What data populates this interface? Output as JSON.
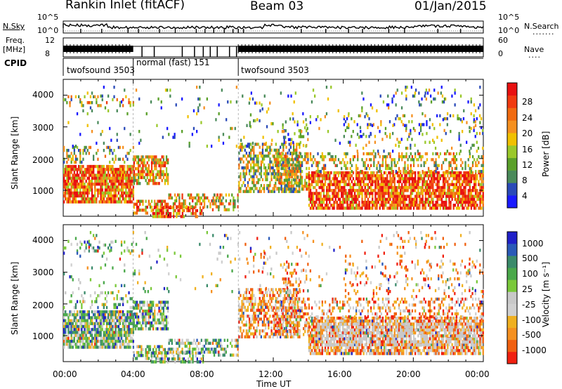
{
  "header": {
    "station": "Rankin Inlet (fitACF)",
    "beam": "Beam 03",
    "date": "01/Jan/2015"
  },
  "noise_panel": {
    "left_label": "N.Sky",
    "right_label": "N.Search",
    "right_dots": ".......",
    "left_ticks": [
      "10^5",
      "10^0"
    ],
    "right_ticks": [
      "10^5",
      "10^0"
    ]
  },
  "freq_panel": {
    "left_label_1": "Freq.",
    "left_label_2": "[MHz]",
    "left_ticks": [
      "12",
      "8"
    ],
    "right_label": "Nave",
    "right_dots": "....",
    "right_ticks": [
      "60",
      "0"
    ]
  },
  "cpid": {
    "label": "CPID",
    "segments": [
      {
        "start_h": 0,
        "end_h": 4,
        "text": "twofsound 3503"
      },
      {
        "start_h": 4,
        "end_h": 10,
        "text": "normal (fast) 151"
      },
      {
        "start_h": 10,
        "end_h": 24,
        "text": "twofsound 3503"
      }
    ]
  },
  "power_panel": {
    "ylabel": "Slant Range [km]",
    "yticks": [
      "4000",
      "3000",
      "2000",
      "1000"
    ],
    "colorbar_label": "Power [dB]",
    "colorbar_ticks": [
      "28",
      "24",
      "20",
      "16",
      "12",
      "8",
      "4"
    ],
    "colors": [
      "#1a1aff",
      "#2a4ab8",
      "#4a8a5a",
      "#5aa02a",
      "#9ac82a",
      "#f0c000",
      "#f59020",
      "#f06a10",
      "#f03a10",
      "#e81010"
    ]
  },
  "velocity_panel": {
    "ylabel": "Slant Range [km]",
    "yticks": [
      "4000",
      "3000",
      "2000",
      "1000"
    ],
    "colorbar_label": "Velocity [m s⁻¹]",
    "colorbar_ticks": [
      "1000",
      "500",
      "100",
      "25",
      "-25",
      "-100",
      "-500",
      "-1000"
    ],
    "colors": [
      "#2020c8",
      "#2a5ab8",
      "#3a8a6a",
      "#4aa84a",
      "#7ac83a",
      "#c8c8c8",
      "#d0d0d0",
      "#f0b020",
      "#f59020",
      "#f06010",
      "#f02010"
    ]
  },
  "xaxis": {
    "ticks": [
      "00:00",
      "04:00",
      "08:00",
      "12:00",
      "16:00",
      "20:00",
      "00:00"
    ],
    "label": "Time UT"
  },
  "chart_data": {
    "type": "heatmap",
    "title": "Rankin Inlet (fitACF)",
    "x_range_hours": [
      0,
      24
    ],
    "y_range_km": [
      180,
      4500
    ],
    "xlabel": "Time UT",
    "ylabel": "Slant Range [km]",
    "series": [
      {
        "name": "Power [dB]",
        "range": [
          0,
          30
        ]
      },
      {
        "name": "Velocity [m s-1]",
        "range": [
          -1000,
          1000
        ]
      }
    ]
  }
}
